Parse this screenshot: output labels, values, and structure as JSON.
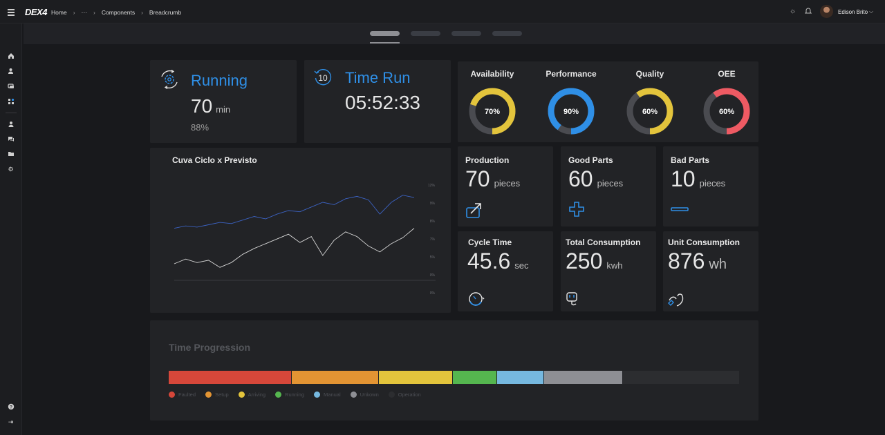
{
  "header": {
    "logo": "DEX4",
    "breadcrumb": [
      "Home",
      "···",
      "Components",
      "Breadcrumb"
    ],
    "user_name": "Edison Brito"
  },
  "tabs": {
    "count": 4,
    "active_index": 0
  },
  "running": {
    "title": "Running",
    "value": "70",
    "unit": "min",
    "percent": "88%"
  },
  "time_run": {
    "title": "Time Run",
    "value": "05:52:33",
    "icon_text": "10"
  },
  "gauges": [
    {
      "label": "Availability",
      "value_text": "70%",
      "percent": 70,
      "color": "#e3c43c"
    },
    {
      "label": "Performance",
      "value_text": "90%",
      "percent": 90,
      "color": "#2f8fe6"
    },
    {
      "label": "Quality",
      "value_text": "60%",
      "percent": 60,
      "color": "#e3c43c"
    },
    {
      "label": "OEE",
      "value_text": "60%",
      "percent": 60,
      "color": "#ee5a63"
    }
  ],
  "kpis": [
    {
      "label": "Production",
      "value": "70",
      "unit": "pieces",
      "icon": "arrow-up-right-icon"
    },
    {
      "label": "Good Parts",
      "value": "60",
      "unit": "pieces",
      "icon": "plus-icon"
    },
    {
      "label": "Bad Parts",
      "value": "10",
      "unit": "pieces",
      "icon": "minus-icon"
    },
    {
      "label": "Cycle Time",
      "value": "45.6",
      "unit": "sec",
      "icon": "stopwatch-icon"
    },
    {
      "label": "Total Consumption",
      "value": "250",
      "unit": "kwh",
      "icon": "plug-icon"
    },
    {
      "label": "Unit Consumption",
      "value": "876",
      "unit": "wh",
      "icon": "power-cord-icon"
    }
  ],
  "chart_data": {
    "type": "line",
    "title": "Cuva Ciclo x Previsto",
    "y_ticks": [
      "12%",
      "9%",
      "8%",
      "7%",
      "5%",
      "0%",
      "0%"
    ],
    "series": [
      {
        "color": "#3c63c4",
        "values": [
          4.4,
          4.6,
          4.5,
          4.7,
          4.9,
          4.8,
          5.1,
          5.4,
          5.2,
          5.6,
          5.9,
          5.8,
          6.2,
          6.6,
          6.4,
          6.9,
          7.1,
          6.8,
          5.6,
          6.6,
          7.2,
          7.0
        ]
      },
      {
        "color": "#d8d8d8",
        "values": [
          1.4,
          1.8,
          1.5,
          1.7,
          1.1,
          1.5,
          2.2,
          2.7,
          3.1,
          3.5,
          3.9,
          3.2,
          3.7,
          2.1,
          3.4,
          4.1,
          3.7,
          2.9,
          2.4,
          3.1,
          3.6,
          4.4
        ]
      }
    ]
  },
  "time_progression": {
    "title": "Time Progression",
    "segments": [
      {
        "label": "Faulted",
        "fraction": 0.216,
        "color": "#d6473a"
      },
      {
        "label": "Setup",
        "fraction": 0.152,
        "color": "#e39433"
      },
      {
        "label": "Arriving",
        "fraction": 0.129,
        "color": "#e3c43c"
      },
      {
        "label": "Running",
        "fraction": 0.078,
        "color": "#55b64f"
      },
      {
        "label": "Manual",
        "fraction": 0.082,
        "color": "#76b8df"
      },
      {
        "label": "Unkown",
        "fraction": 0.139,
        "color": "#8e8f94"
      },
      {
        "label": "Operation",
        "fraction": 0.204,
        "color": "#2c2d30"
      }
    ]
  }
}
